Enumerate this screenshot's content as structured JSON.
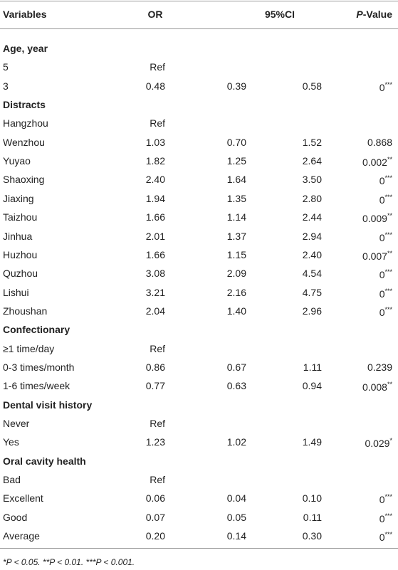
{
  "header": {
    "variables": "Variables",
    "or": "OR",
    "ci": "95%CI",
    "p_italic": "P",
    "p_rest": "-Value"
  },
  "table": {
    "rows": [
      {
        "section": "Age, year"
      },
      {
        "label": "5",
        "or": "Ref"
      },
      {
        "label": "3",
        "or": "0.48",
        "ci_low": "0.39",
        "ci_high": "0.58",
        "p": "0",
        "sig": "***"
      },
      {
        "section": "Distracts"
      },
      {
        "label": "Hangzhou",
        "or": "Ref"
      },
      {
        "label": "Wenzhou",
        "or": "1.03",
        "ci_low": "0.70",
        "ci_high": "1.52",
        "p": "0.868"
      },
      {
        "label": "Yuyao",
        "or": "1.82",
        "ci_low": "1.25",
        "ci_high": "2.64",
        "p": "0.002",
        "sig": "**"
      },
      {
        "label": "Shaoxing",
        "or": "2.40",
        "ci_low": "1.64",
        "ci_high": "3.50",
        "p": "0",
        "sig": "***"
      },
      {
        "label": "Jiaxing",
        "or": "1.94",
        "ci_low": "1.35",
        "ci_high": "2.80",
        "p": "0",
        "sig": "***"
      },
      {
        "label": "Taizhou",
        "or": "1.66",
        "ci_low": "1.14",
        "ci_high": "2.44",
        "p": "0.009",
        "sig": "**"
      },
      {
        "label": "Jinhua",
        "or": "2.01",
        "ci_low": "1.37",
        "ci_high": "2.94",
        "p": "0",
        "sig": "***"
      },
      {
        "label": "Huzhou",
        "or": "1.66",
        "ci_low": "1.15",
        "ci_high": "2.40",
        "p": "0.007",
        "sig": "**"
      },
      {
        "label": "Quzhou",
        "or": "3.08",
        "ci_low": "2.09",
        "ci_high": "4.54",
        "p": "0",
        "sig": "***"
      },
      {
        "label": "Lishui",
        "or": "3.21",
        "ci_low": "2.16",
        "ci_high": "4.75",
        "p": "0",
        "sig": "***"
      },
      {
        "label": "Zhoushan",
        "or": "2.04",
        "ci_low": "1.40",
        "ci_high": "2.96",
        "p": "0",
        "sig": "***"
      },
      {
        "section": "Confectionary"
      },
      {
        "label": "≥1 time/day",
        "or": "Ref"
      },
      {
        "label": "0-3 times/month",
        "or": "0.86",
        "ci_low": "0.67",
        "ci_high": "1.11",
        "p": "0.239"
      },
      {
        "label": "1-6 times/week",
        "or": "0.77",
        "ci_low": "0.63",
        "ci_high": "0.94",
        "p": "0.008",
        "sig": "**"
      },
      {
        "section": "Dental visit history"
      },
      {
        "label": "Never",
        "or": "Ref"
      },
      {
        "label": "Yes",
        "or": "1.23",
        "ci_low": "1.02",
        "ci_high": "1.49",
        "p": "0.029",
        "sig": "*"
      },
      {
        "section": "Oral cavity health"
      },
      {
        "label": "Bad",
        "or": "Ref"
      },
      {
        "label": "Excellent",
        "or": "0.06",
        "ci_low": "0.04",
        "ci_high": "0.10",
        "p": "0",
        "sig": "***"
      },
      {
        "label": "Good",
        "or": "0.07",
        "ci_low": "0.05",
        "ci_high": "0.11",
        "p": "0",
        "sig": "***"
      },
      {
        "label": "Average",
        "or": "0.20",
        "ci_low": "0.14",
        "ci_high": "0.30",
        "p": "0",
        "sig": "***"
      }
    ]
  },
  "footnote": "*P < 0.05. **P < 0.01. ***P < 0.001."
}
